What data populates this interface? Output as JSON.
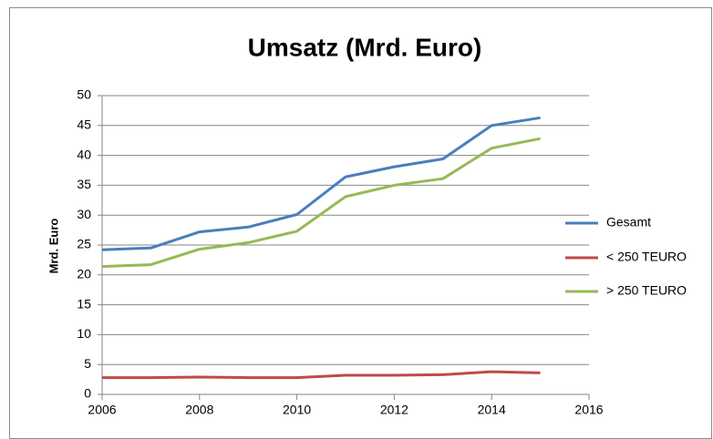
{
  "chart_data": {
    "type": "line",
    "title": "Umsatz (Mrd. Euro)",
    "y_label": "Mrd. Euro",
    "x": [
      2006,
      2007,
      2008,
      2009,
      2010,
      2011,
      2012,
      2013,
      2014,
      2015
    ],
    "series": [
      {
        "name": "Gesamt",
        "color": "#4a7ebb",
        "values": [
          24.2,
          24.5,
          27.2,
          28.0,
          30.1,
          36.4,
          38.1,
          39.4,
          45.0,
          46.3
        ]
      },
      {
        "name": "< 250 TEURO",
        "color": "#be4b48",
        "values": [
          2.8,
          2.8,
          2.9,
          2.8,
          2.8,
          3.2,
          3.2,
          3.3,
          3.8,
          3.6
        ]
      },
      {
        "name": "> 250 TEURO",
        "color": "#98b954",
        "values": [
          21.4,
          21.7,
          24.3,
          25.4,
          27.3,
          33.1,
          35.0,
          36.1,
          41.2,
          42.8
        ]
      }
    ],
    "xlim": [
      2006,
      2016
    ],
    "xticks": [
      2006,
      2008,
      2010,
      2012,
      2014,
      2016
    ],
    "ylim": [
      0,
      50
    ],
    "yticks": [
      0,
      5,
      10,
      15,
      20,
      25,
      30,
      35,
      40,
      45,
      50
    ],
    "grid": true,
    "legend": "right"
  }
}
